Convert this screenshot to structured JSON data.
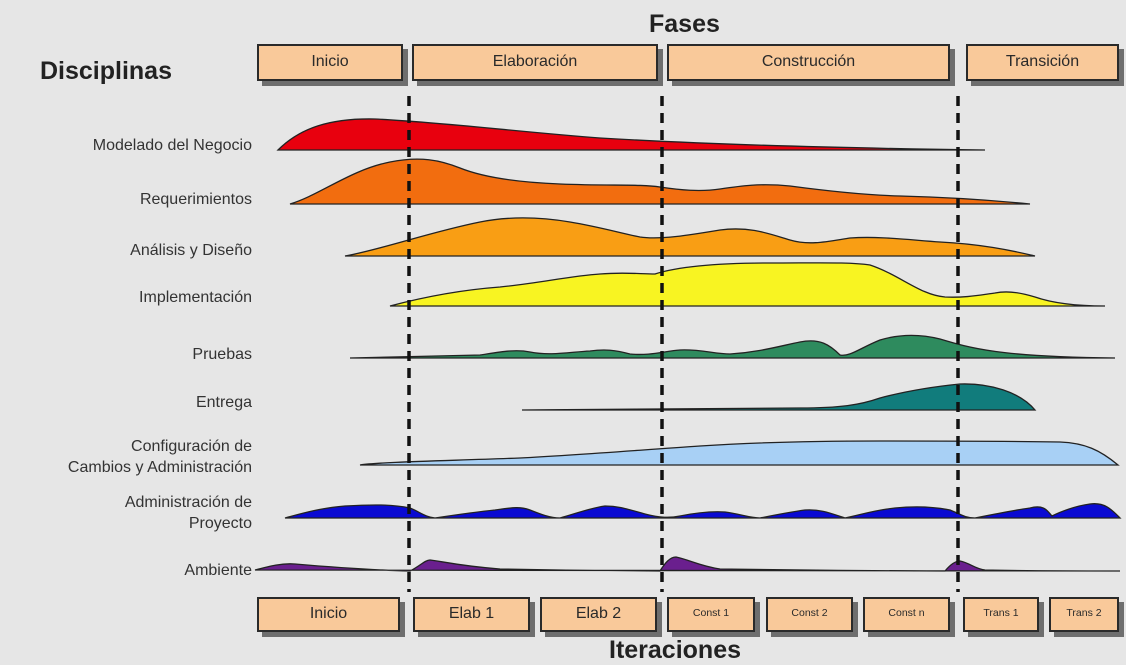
{
  "title_fases": "Fases",
  "title_disciplinas": "Disciplinas",
  "title_iteraciones": "Iteraciones",
  "phases": [
    "Inicio",
    "Elaboración",
    "Construcción",
    "Transición"
  ],
  "iterations": [
    "Inicio",
    "Elab 1",
    "Elab 2",
    "Const 1",
    "Const 2",
    "Const n",
    "Trans 1",
    "Trans 2"
  ],
  "disciplines": [
    {
      "lines": [
        "Modelado del Negocio"
      ],
      "color": "#e8000e"
    },
    {
      "lines": [
        "Requerimientos"
      ],
      "color": "#f26d0f"
    },
    {
      "lines": [
        "Análisis y Diseño"
      ],
      "color": "#f99e14"
    },
    {
      "lines": [
        "Implementación"
      ],
      "color": "#f8f422"
    },
    {
      "lines": [
        "Pruebas"
      ],
      "color": "#2e8b5e"
    },
    {
      "lines": [
        "Entrega"
      ],
      "color": "#117c7c"
    },
    {
      "lines": [
        "Configuración de",
        "Cambios y Administración"
      ],
      "color": "#a8d0f5"
    },
    {
      "lines": [
        "Administración de",
        "Proyecto"
      ],
      "color": "#0a0ad2"
    },
    {
      "lines": [
        "Ambiente"
      ],
      "color": "#6a1f8e"
    }
  ]
}
